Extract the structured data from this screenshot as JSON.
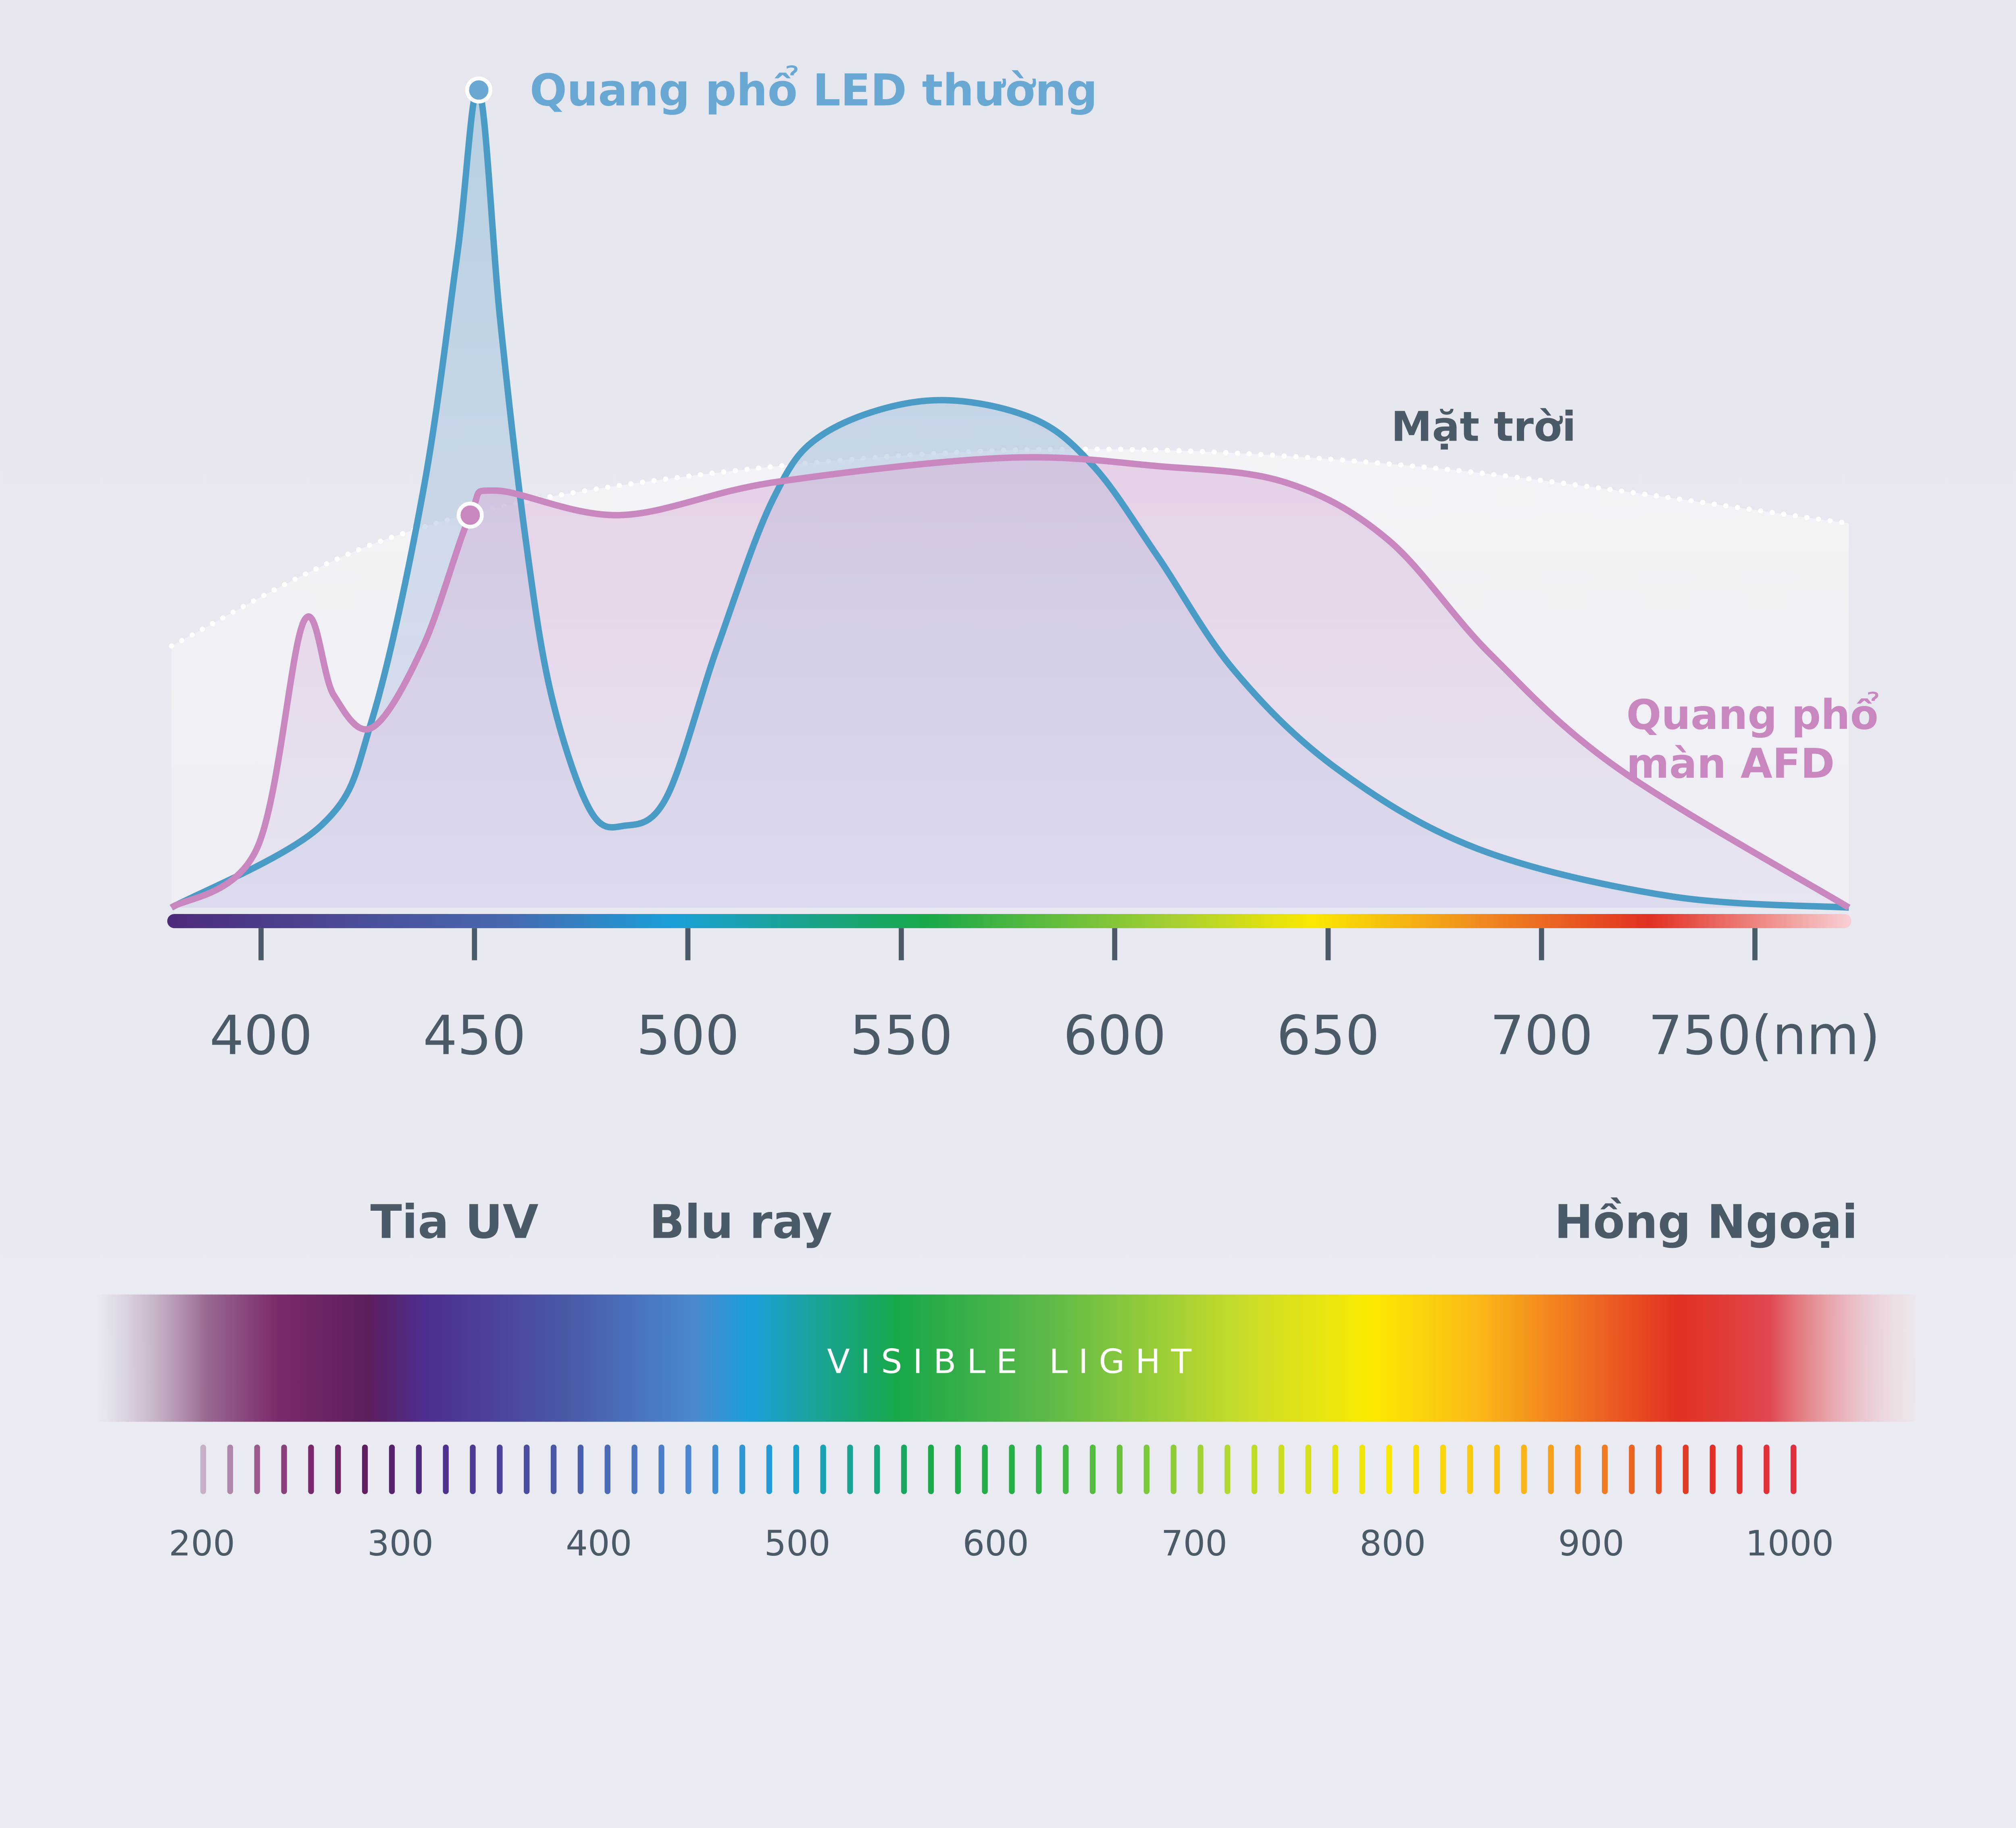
{
  "labels": {
    "led": "Quang phổ LED thường",
    "sun": "Mặt trời",
    "afd_line1": "Quang phổ",
    "afd_line2": "màn AFD",
    "uv": "Tia UV",
    "blue": "Blu ray",
    "infrared": "Hồng Ngoại",
    "visible": "V I S I B L E   L I G H T"
  },
  "colors": {
    "led": "#4a9cc6",
    "afd": "#c887bf",
    "text": "#4a5a66"
  },
  "chart_data": [
    {
      "type": "line",
      "title": "",
      "xlabel": "(nm)",
      "ylabel": "",
      "xlim": [
        379,
        772
      ],
      "ylim": [
        0,
        1
      ],
      "x_ticks": [
        400,
        450,
        500,
        550,
        600,
        650,
        700,
        750
      ],
      "x_tick_labels": [
        "400",
        "450",
        "500",
        "550",
        "600",
        "650",
        "700",
        "750(nm)"
      ],
      "series": [
        {
          "name": "Quang phổ LED thường",
          "x": [
            379,
            414,
            426,
            438,
            446,
            451,
            456,
            462,
            468,
            477,
            485,
            495,
            507,
            520,
            532,
            556,
            580,
            595,
            610,
            628,
            652,
            685,
            730,
            772
          ],
          "y": [
            0,
            0.1,
            0.23,
            0.51,
            0.8,
            1.0,
            0.72,
            0.45,
            0.26,
            0.12,
            0.1,
            0.135,
            0.32,
            0.5,
            0.58,
            0.62,
            0.6,
            0.54,
            0.43,
            0.29,
            0.17,
            0.072,
            0.014,
            0
          ]
        },
        {
          "name": "Quang phổ màn AFD",
          "x": [
            379,
            399,
            410,
            417,
            426,
            438,
            449,
            455,
            484,
            520,
            574,
            610,
            640,
            664,
            688,
            718,
            772
          ],
          "y": [
            0,
            0.072,
            0.35,
            0.26,
            0.22,
            0.32,
            0.48,
            0.51,
            0.48,
            0.52,
            0.55,
            0.54,
            0.52,
            0.45,
            0.31,
            0.17,
            0
          ]
        },
        {
          "name": "Mặt trời",
          "x": [
            379,
            429,
            489,
            580,
            670,
            772
          ],
          "y": [
            0.32,
            0.45,
            0.52,
            0.56,
            0.54,
            0.47
          ]
        }
      ]
    },
    {
      "type": "scale",
      "xlim": [
        200,
        1000
      ],
      "tick_labels": [
        "200",
        "300",
        "400",
        "500",
        "600",
        "700",
        "800",
        "900",
        "1000"
      ],
      "minor_tick_count": 60
    }
  ]
}
